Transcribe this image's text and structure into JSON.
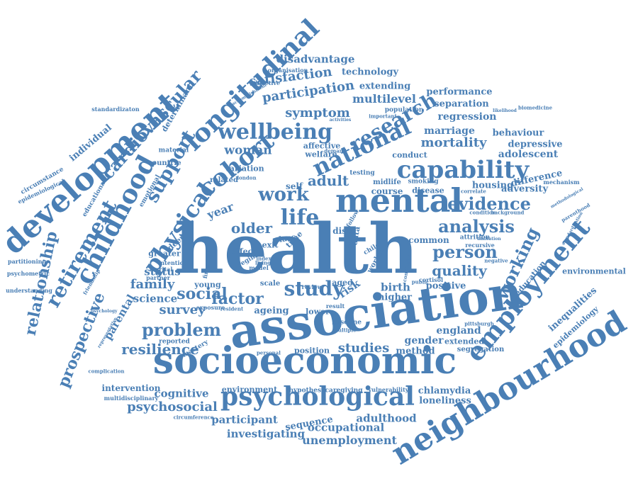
{
  "palette": {
    "word": "#4a7fb5",
    "background": "#ffffff"
  },
  "words": [
    "health",
    "association",
    "socioeconomic",
    "neighbourhood",
    "development",
    "mental",
    "longitudinal",
    "psychological",
    "employment",
    "childhood",
    "cohort",
    "capability",
    "national",
    "wellbeing",
    "physical",
    "life",
    "analysis",
    "study",
    "research",
    "retirement",
    "support",
    "work",
    "cardiovascular",
    "relationship",
    "prospective",
    "problem",
    "resilience",
    "person",
    "quality",
    "evidence",
    "working",
    "factor",
    "social",
    "older",
    "participation",
    "satisfaction",
    "disadvantage",
    "symptom",
    "adult",
    "woman",
    "mortality",
    "studies",
    "psychosocial",
    "family",
    "survey",
    "science",
    "parental",
    "status",
    "unemployment",
    "investigating",
    "occupational",
    "participant",
    "adulthood",
    "sequence",
    "cognitive",
    "intervention",
    "england",
    "gender",
    "method",
    "birth",
    "higher",
    "risk",
    "positive",
    "technology",
    "extending",
    "multilevel",
    "performance",
    "separation",
    "regression",
    "marriage",
    "behaviour",
    "depressive",
    "adolescent",
    "difference",
    "adversity",
    "housing",
    "inequalities",
    "epidemiology",
    "environmental",
    "education",
    "loneliness",
    "chlamydia",
    "individual",
    "determinant",
    "material",
    "circumstance",
    "epidemiological",
    "psychometric",
    "partitioning",
    "understanding",
    "emotional",
    "educational",
    "objective",
    "organisation",
    "standardizaton",
    "accomplishment",
    "multidisciplinary",
    "circumference",
    "complication",
    "mechanism",
    "biomedicine",
    "standardization",
    "extended",
    "segregation",
    "pittsburgh",
    "attrition",
    "recursive",
    "limitation",
    "parenthood",
    "methodological",
    "background",
    "condition",
    "correlate",
    "smoking",
    "disease",
    "midlife",
    "course",
    "testing",
    "conduct",
    "demand",
    "welfare",
    "affective",
    "variation",
    "london",
    "related",
    "countrie",
    "self",
    "year",
    "effect",
    "regime",
    "deep",
    "greater",
    "intention",
    "marital",
    "partner",
    "young",
    "scale",
    "distr",
    "control",
    "data",
    "time",
    "class",
    "exit",
    "aged",
    "worker",
    "child",
    "common",
    "lower",
    "ageing",
    "result",
    "baseline",
    "multiple",
    "position",
    "reported",
    "mastery",
    "personal",
    "environment",
    "hypothesi",
    "caregiving",
    "vulnerability",
    "cortisol",
    "public",
    "conclusion",
    "negative",
    "population",
    "important",
    "activities",
    "likelihood",
    "friendship",
    "psychology",
    "representative",
    "exposure",
    "resident",
    "financial",
    "model",
    "index",
    "living",
    "review",
    "follow"
  ]
}
